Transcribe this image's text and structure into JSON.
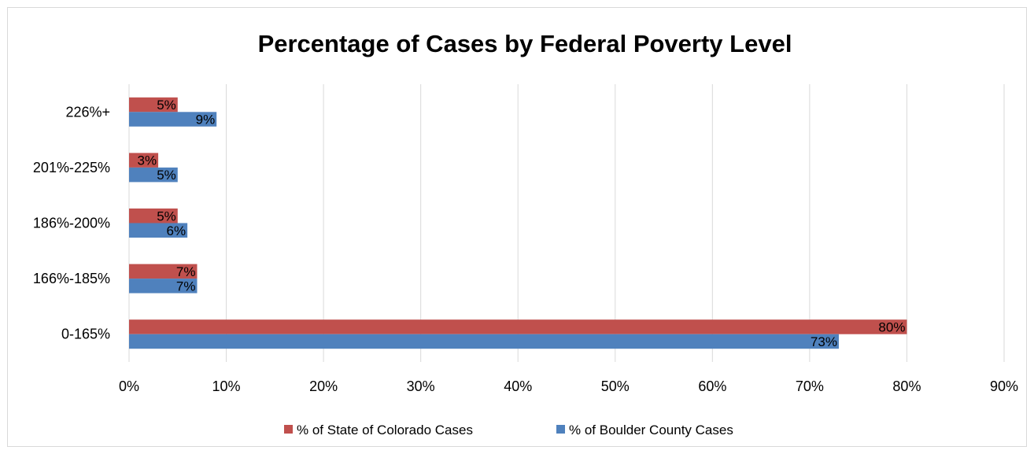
{
  "chart_data": {
    "type": "bar",
    "orientation": "horizontal",
    "title": "Percentage of Cases by Federal Poverty Level",
    "xlabel": "",
    "ylabel": "",
    "categories": [
      "0-165%",
      "166%-185%",
      "186%-200%",
      "201%-225%",
      "226%+"
    ],
    "series": [
      {
        "name": "% of State of Colorado Cases",
        "color": "#c0504d",
        "values": [
          80,
          7,
          5,
          3,
          5
        ],
        "labels": [
          "80%",
          "7%",
          "5%",
          "3%",
          "5%"
        ]
      },
      {
        "name": "% of Boulder County Cases",
        "color": "#4f81bd",
        "values": [
          73,
          7,
          6,
          5,
          9
        ],
        "labels": [
          "73%",
          "7%",
          "6%",
          "5%",
          "9%"
        ]
      }
    ],
    "xlim": [
      0,
      90
    ],
    "xticks": [
      0,
      10,
      20,
      30,
      40,
      50,
      60,
      70,
      80,
      90
    ],
    "xtick_labels": [
      "0%",
      "10%",
      "20%",
      "30%",
      "40%",
      "50%",
      "60%",
      "70%",
      "80%",
      "90%"
    ],
    "grid": true,
    "gridline_color": "#d9d9d9",
    "legend_position": "bottom"
  }
}
